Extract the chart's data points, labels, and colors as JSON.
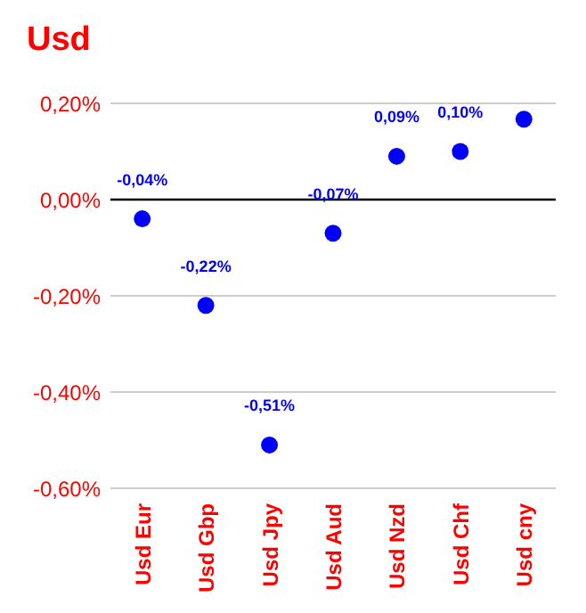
{
  "chart_data": {
    "type": "scatter",
    "title": "Usd",
    "categories": [
      "Usd Eur",
      "Usd Gbp",
      "Usd Jpy",
      "Usd Aud",
      "Usd Nzd",
      "Usd Chf",
      "Usd cny"
    ],
    "series": [
      {
        "color": "#0000ff",
        "values": [
          -0.04,
          -0.22,
          -0.51,
          -0.07,
          0.09,
          0.1,
          0.167
        ],
        "value_labels": [
          "-0,04%",
          "-0,22%",
          "-0,51%",
          "-0,07%",
          "0,09%",
          "0,10%",
          null
        ]
      }
    ],
    "ylim": [
      -0.6,
      0.2
    ],
    "yticks": [
      {
        "value": 0.2,
        "label": "0,20%"
      },
      {
        "value": 0,
        "label": "0,00%"
      },
      {
        "value": -0.2,
        "label": "-0,20%"
      },
      {
        "value": -0.4,
        "label": "-0,40%"
      },
      {
        "value": -0.6,
        "label": "-0,60%"
      }
    ],
    "grid": "y",
    "marker": "circle",
    "legend": false,
    "ref_lines": [
      {
        "axis": "y",
        "value": 0,
        "color": "#000000"
      }
    ]
  }
}
